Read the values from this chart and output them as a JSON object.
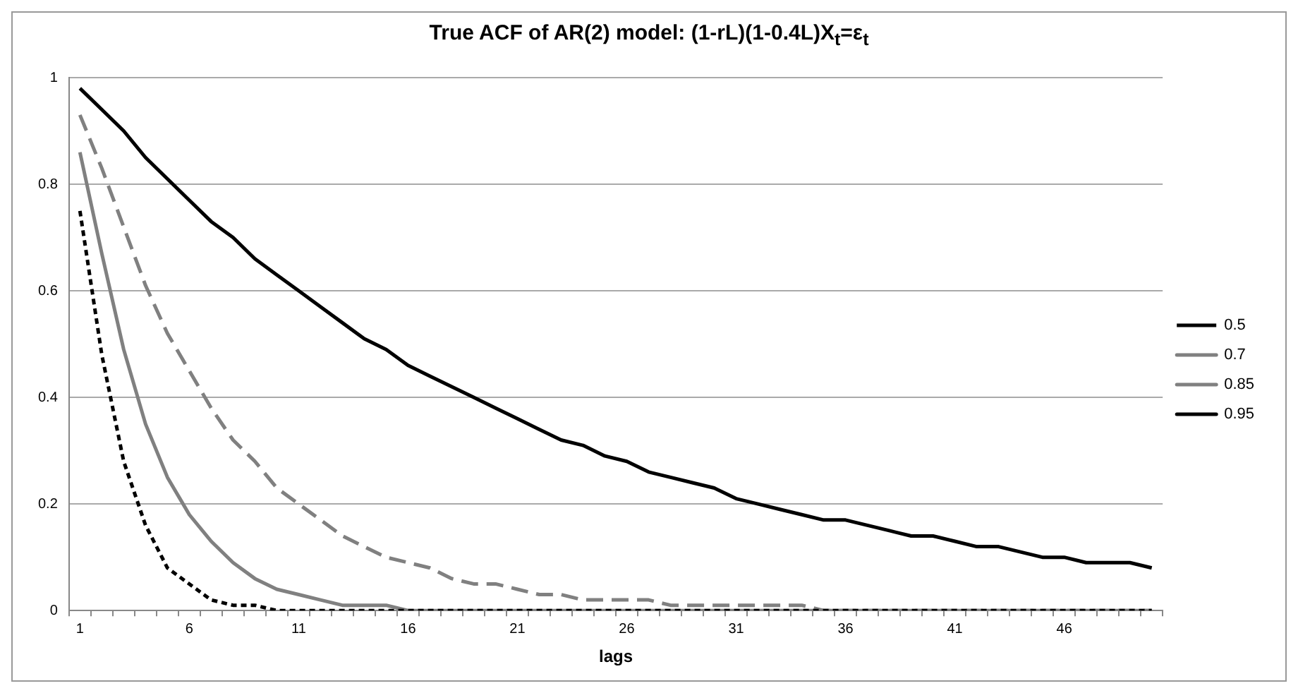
{
  "chart_data": {
    "type": "line",
    "title": "True ACF of AR(2) model:  (1-rL)(1-0.4L)X$_{t}$=ε$_{t}$",
    "xlabel": "lags",
    "categories": [
      "1",
      null,
      null,
      null,
      null,
      "6",
      null,
      null,
      null,
      null,
      "11",
      null,
      null,
      null,
      null,
      "16",
      null,
      null,
      null,
      null,
      "21",
      null,
      null,
      null,
      null,
      "26",
      null,
      null,
      null,
      null,
      "31",
      null,
      null,
      null,
      null,
      "36",
      null,
      null,
      null,
      null,
      "41",
      null,
      null,
      null,
      null,
      "46",
      null,
      null,
      null,
      null
    ],
    "series": [
      {
        "name": "0.5",
        "color": "#000000",
        "line_style": "dotted",
        "values": [
          0.75,
          0.48,
          0.28,
          0.16,
          0.08,
          0.05,
          0.02,
          0.01,
          0.01,
          0,
          0,
          0,
          0,
          0,
          0,
          0,
          0,
          0,
          0,
          0,
          0,
          0,
          0,
          0,
          0,
          0,
          0,
          0,
          0,
          0,
          0,
          0,
          0,
          0,
          0,
          0,
          0,
          0,
          0,
          0,
          0,
          0,
          0,
          0,
          0,
          0,
          0,
          0,
          0,
          0
        ]
      },
      {
        "name": "0.7",
        "color": "#808080",
        "line_style": "solid",
        "values": [
          0.86,
          0.67,
          0.49,
          0.35,
          0.25,
          0.18,
          0.13,
          0.09,
          0.06,
          0.04,
          0.03,
          0.02,
          0.01,
          0.01,
          0.01,
          0,
          0,
          0,
          0,
          0,
          0,
          0,
          0,
          0,
          0,
          0,
          0,
          0,
          0,
          0,
          0,
          0,
          0,
          0,
          0,
          0,
          0,
          0,
          0,
          0,
          0,
          0,
          0,
          0,
          0,
          0,
          0,
          0,
          0,
          0
        ]
      },
      {
        "name": "0.85",
        "color": "#808080",
        "line_style": "dashed",
        "values": [
          0.93,
          0.83,
          0.72,
          0.61,
          0.52,
          0.45,
          0.38,
          0.32,
          0.28,
          0.23,
          0.2,
          0.17,
          0.14,
          0.12,
          0.1,
          0.09,
          0.08,
          0.06,
          0.05,
          0.05,
          0.04,
          0.03,
          0.03,
          0.02,
          0.02,
          0.02,
          0.02,
          0.01,
          0.01,
          0.01,
          0.01,
          0.01,
          0.01,
          0.01,
          0,
          0,
          0,
          0,
          0,
          0,
          0,
          0,
          0,
          0,
          0,
          0,
          0,
          0,
          0,
          0
        ]
      },
      {
        "name": "0.95",
        "color": "#000000",
        "line_style": "solid",
        "values": [
          0.98,
          0.94,
          0.9,
          0.85,
          0.81,
          0.77,
          0.73,
          0.7,
          0.66,
          0.63,
          0.6,
          0.57,
          0.54,
          0.51,
          0.49,
          0.46,
          0.44,
          0.42,
          0.4,
          0.38,
          0.36,
          0.34,
          0.32,
          0.31,
          0.29,
          0.28,
          0.26,
          0.25,
          0.24,
          0.23,
          0.21,
          0.2,
          0.19,
          0.18,
          0.17,
          0.17,
          0.16,
          0.15,
          0.14,
          0.14,
          0.13,
          0.12,
          0.12,
          0.11,
          0.1,
          0.1,
          0.09,
          0.09,
          0.09,
          0.08
        ]
      }
    ],
    "ylim": [
      0,
      1
    ],
    "yticks": [
      0,
      0.2,
      0.4,
      0.6,
      0.8,
      1
    ],
    "grid": "y",
    "legend": "right",
    "marker": "none"
  }
}
